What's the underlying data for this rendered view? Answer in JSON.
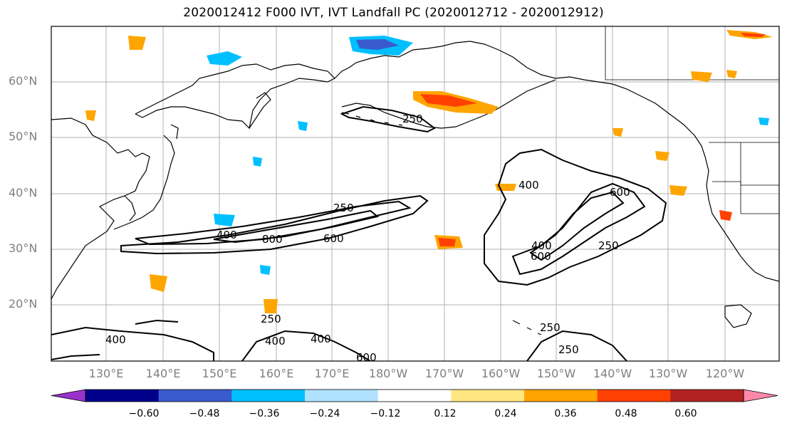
{
  "title": "2020012412 F000 IVT, IVT Landfall PC (2020012712 - 2020012912)",
  "lat_labels": [
    "60°N",
    "50°N",
    "40°N",
    "30°N",
    "20°N"
  ],
  "lon_labels": [
    "130°E",
    "140°E",
    "150°E",
    "160°E",
    "170°E",
    "180°W",
    "170°W",
    "160°W",
    "150°W",
    "140°W",
    "130°W",
    "120°W"
  ],
  "colorbar": {
    "tick_labels": [
      "−0.60",
      "−0.48",
      "−0.36",
      "−0.24",
      "−0.12",
      "0.12",
      "0.24",
      "0.36",
      "0.48",
      "0.60"
    ],
    "colors": [
      "#9932cc",
      "#00008b",
      "#3a5bcd",
      "#00bfff",
      "#b0e2ff",
      "#ffffff",
      "#ffe680",
      "#ffa500",
      "#ff4000",
      "#b22222",
      "#ff88aa"
    ]
  },
  "contour_labels": [
    "250",
    "400",
    "800",
    "600",
    "400",
    "600",
    "250",
    "250",
    "400",
    "250",
    "400",
    "400",
    "600",
    "250",
    "400",
    "600",
    "250"
  ]
}
